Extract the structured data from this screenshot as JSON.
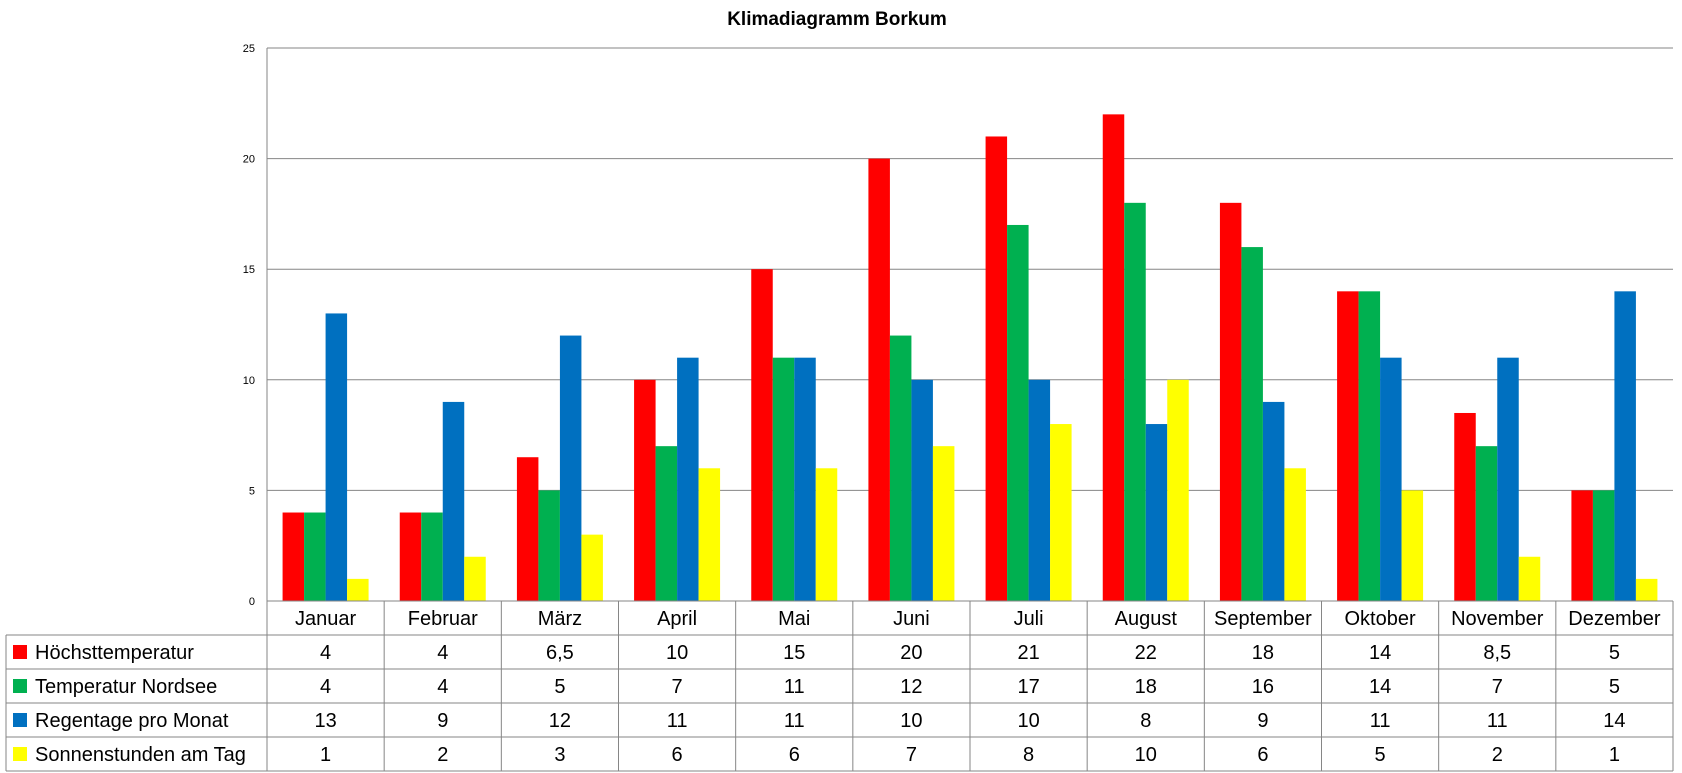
{
  "chart_data": {
    "type": "bar",
    "title": "Klimadiagramm Borkum",
    "xlabel": "",
    "ylabel": "",
    "ylim": [
      0,
      25
    ],
    "yticks": [
      0,
      5,
      10,
      15,
      20,
      25
    ],
    "grid": true,
    "legend": "data-table-left",
    "categories": [
      "Januar",
      "Februar",
      "März",
      "April",
      "Mai",
      "Juni",
      "Juli",
      "August",
      "September",
      "Oktober",
      "November",
      "Dezember"
    ],
    "series": [
      {
        "name": "Höchsttemperatur",
        "color": "#ff0000",
        "values": [
          4,
          4,
          6.5,
          10,
          15,
          20,
          21,
          22,
          18,
          14,
          8.5,
          5
        ],
        "labels": [
          "4",
          "4",
          "6,5",
          "10",
          "15",
          "20",
          "21",
          "22",
          "18",
          "14",
          "8,5",
          "5"
        ]
      },
      {
        "name": "Temperatur Nordsee",
        "color": "#00b050",
        "values": [
          4,
          4,
          5,
          7,
          11,
          12,
          17,
          18,
          16,
          14,
          7,
          5
        ],
        "labels": [
          "4",
          "4",
          "5",
          "7",
          "11",
          "12",
          "17",
          "18",
          "16",
          "14",
          "7",
          "5"
        ]
      },
      {
        "name": "Regentage pro Monat",
        "color": "#0070c0",
        "values": [
          13,
          9,
          12,
          11,
          11,
          10,
          10,
          8,
          9,
          11,
          11,
          14
        ],
        "labels": [
          "13",
          "9",
          "12",
          "11",
          "11",
          "10",
          "10",
          "8",
          "9",
          "11",
          "11",
          "14"
        ]
      },
      {
        "name": "Sonnenstunden am Tag",
        "color": "#ffff00",
        "values": [
          1,
          2,
          3,
          6,
          6,
          7,
          8,
          10,
          6,
          5,
          2,
          1
        ],
        "labels": [
          "1",
          "2",
          "3",
          "6",
          "6",
          "7",
          "8",
          "10",
          "6",
          "5",
          "2",
          "1"
        ]
      }
    ]
  }
}
